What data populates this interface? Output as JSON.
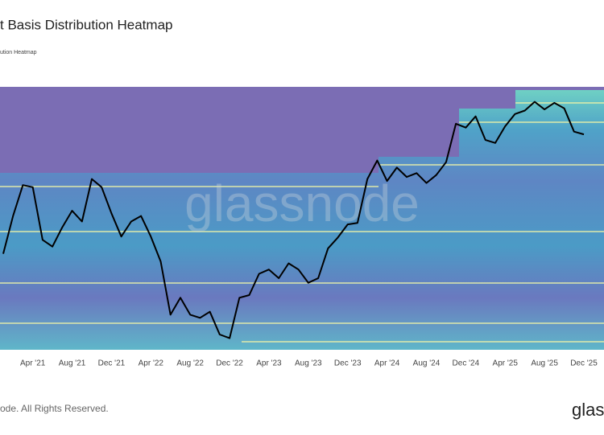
{
  "chart_data": {
    "type": "line",
    "title": "t Basis Distribution Heatmap",
    "subtitle": "ution Heatmap",
    "watermark": "glassnode",
    "footer": "ode. All Rights Reserved.",
    "logo": "glas",
    "log_scale": true,
    "ylim": [
      15000,
      130000
    ],
    "xlim": [
      "2021-01",
      "2025-12"
    ],
    "xticks": [
      {
        "value": "2021-04",
        "label": "Apr '21"
      },
      {
        "value": "2021-08",
        "label": "Aug '21"
      },
      {
        "value": "2021-12",
        "label": "Dec '21"
      },
      {
        "value": "2022-04",
        "label": "Apr '22"
      },
      {
        "value": "2022-08",
        "label": "Aug '22"
      },
      {
        "value": "2022-12",
        "label": "Dec '22"
      },
      {
        "value": "2023-04",
        "label": "Apr '23"
      },
      {
        "value": "2023-08",
        "label": "Aug '23"
      },
      {
        "value": "2023-12",
        "label": "Dec '23"
      },
      {
        "value": "2024-04",
        "label": "Apr '24"
      },
      {
        "value": "2024-08",
        "label": "Aug '24"
      },
      {
        "value": "2024-12",
        "label": "Dec '24"
      },
      {
        "value": "2025-04",
        "label": "Apr '25"
      },
      {
        "value": "2025-08",
        "label": "Aug '25"
      },
      {
        "value": "2025-12",
        "label": "Dec '25"
      }
    ],
    "x": [
      "2021-01",
      "2021-02",
      "2021-03",
      "2021-04",
      "2021-05",
      "2021-06",
      "2021-07",
      "2021-08",
      "2021-09",
      "2021-10",
      "2021-11",
      "2021-12",
      "2022-01",
      "2022-02",
      "2022-03",
      "2022-04",
      "2022-05",
      "2022-06",
      "2022-07",
      "2022-08",
      "2022-09",
      "2022-10",
      "2022-11",
      "2022-12",
      "2023-01",
      "2023-02",
      "2023-03",
      "2023-04",
      "2023-05",
      "2023-06",
      "2023-07",
      "2023-08",
      "2023-09",
      "2023-10",
      "2023-11",
      "2023-12",
      "2024-01",
      "2024-02",
      "2024-03",
      "2024-04",
      "2024-05",
      "2024-06",
      "2024-07",
      "2024-08",
      "2024-09",
      "2024-10",
      "2024-11",
      "2024-12",
      "2025-01",
      "2025-02",
      "2025-03",
      "2025-04",
      "2025-05",
      "2025-06",
      "2025-07",
      "2025-08",
      "2025-09",
      "2025-10",
      "2025-11",
      "2025-12"
    ],
    "series": [
      {
        "color": "#000000",
        "values": [
          33000,
          45000,
          58000,
          57000,
          37000,
          35000,
          41000,
          47000,
          43000,
          61000,
          57000,
          46000,
          38000,
          43000,
          45000,
          38000,
          31000,
          20000,
          23000,
          20000,
          19500,
          20500,
          17000,
          16500,
          23000,
          23500,
          28000,
          29000,
          27000,
          30500,
          29000,
          26000,
          27000,
          34500,
          37700,
          42000,
          42500,
          61000,
          71000,
          60000,
          67000,
          62000,
          64000,
          59000,
          63000,
          70000,
          96000,
          93000,
          102000,
          84000,
          82000,
          94000,
          104000,
          107000,
          115000,
          108000,
          114000,
          109000,
          90000,
          88000
        ]
      }
    ]
  }
}
